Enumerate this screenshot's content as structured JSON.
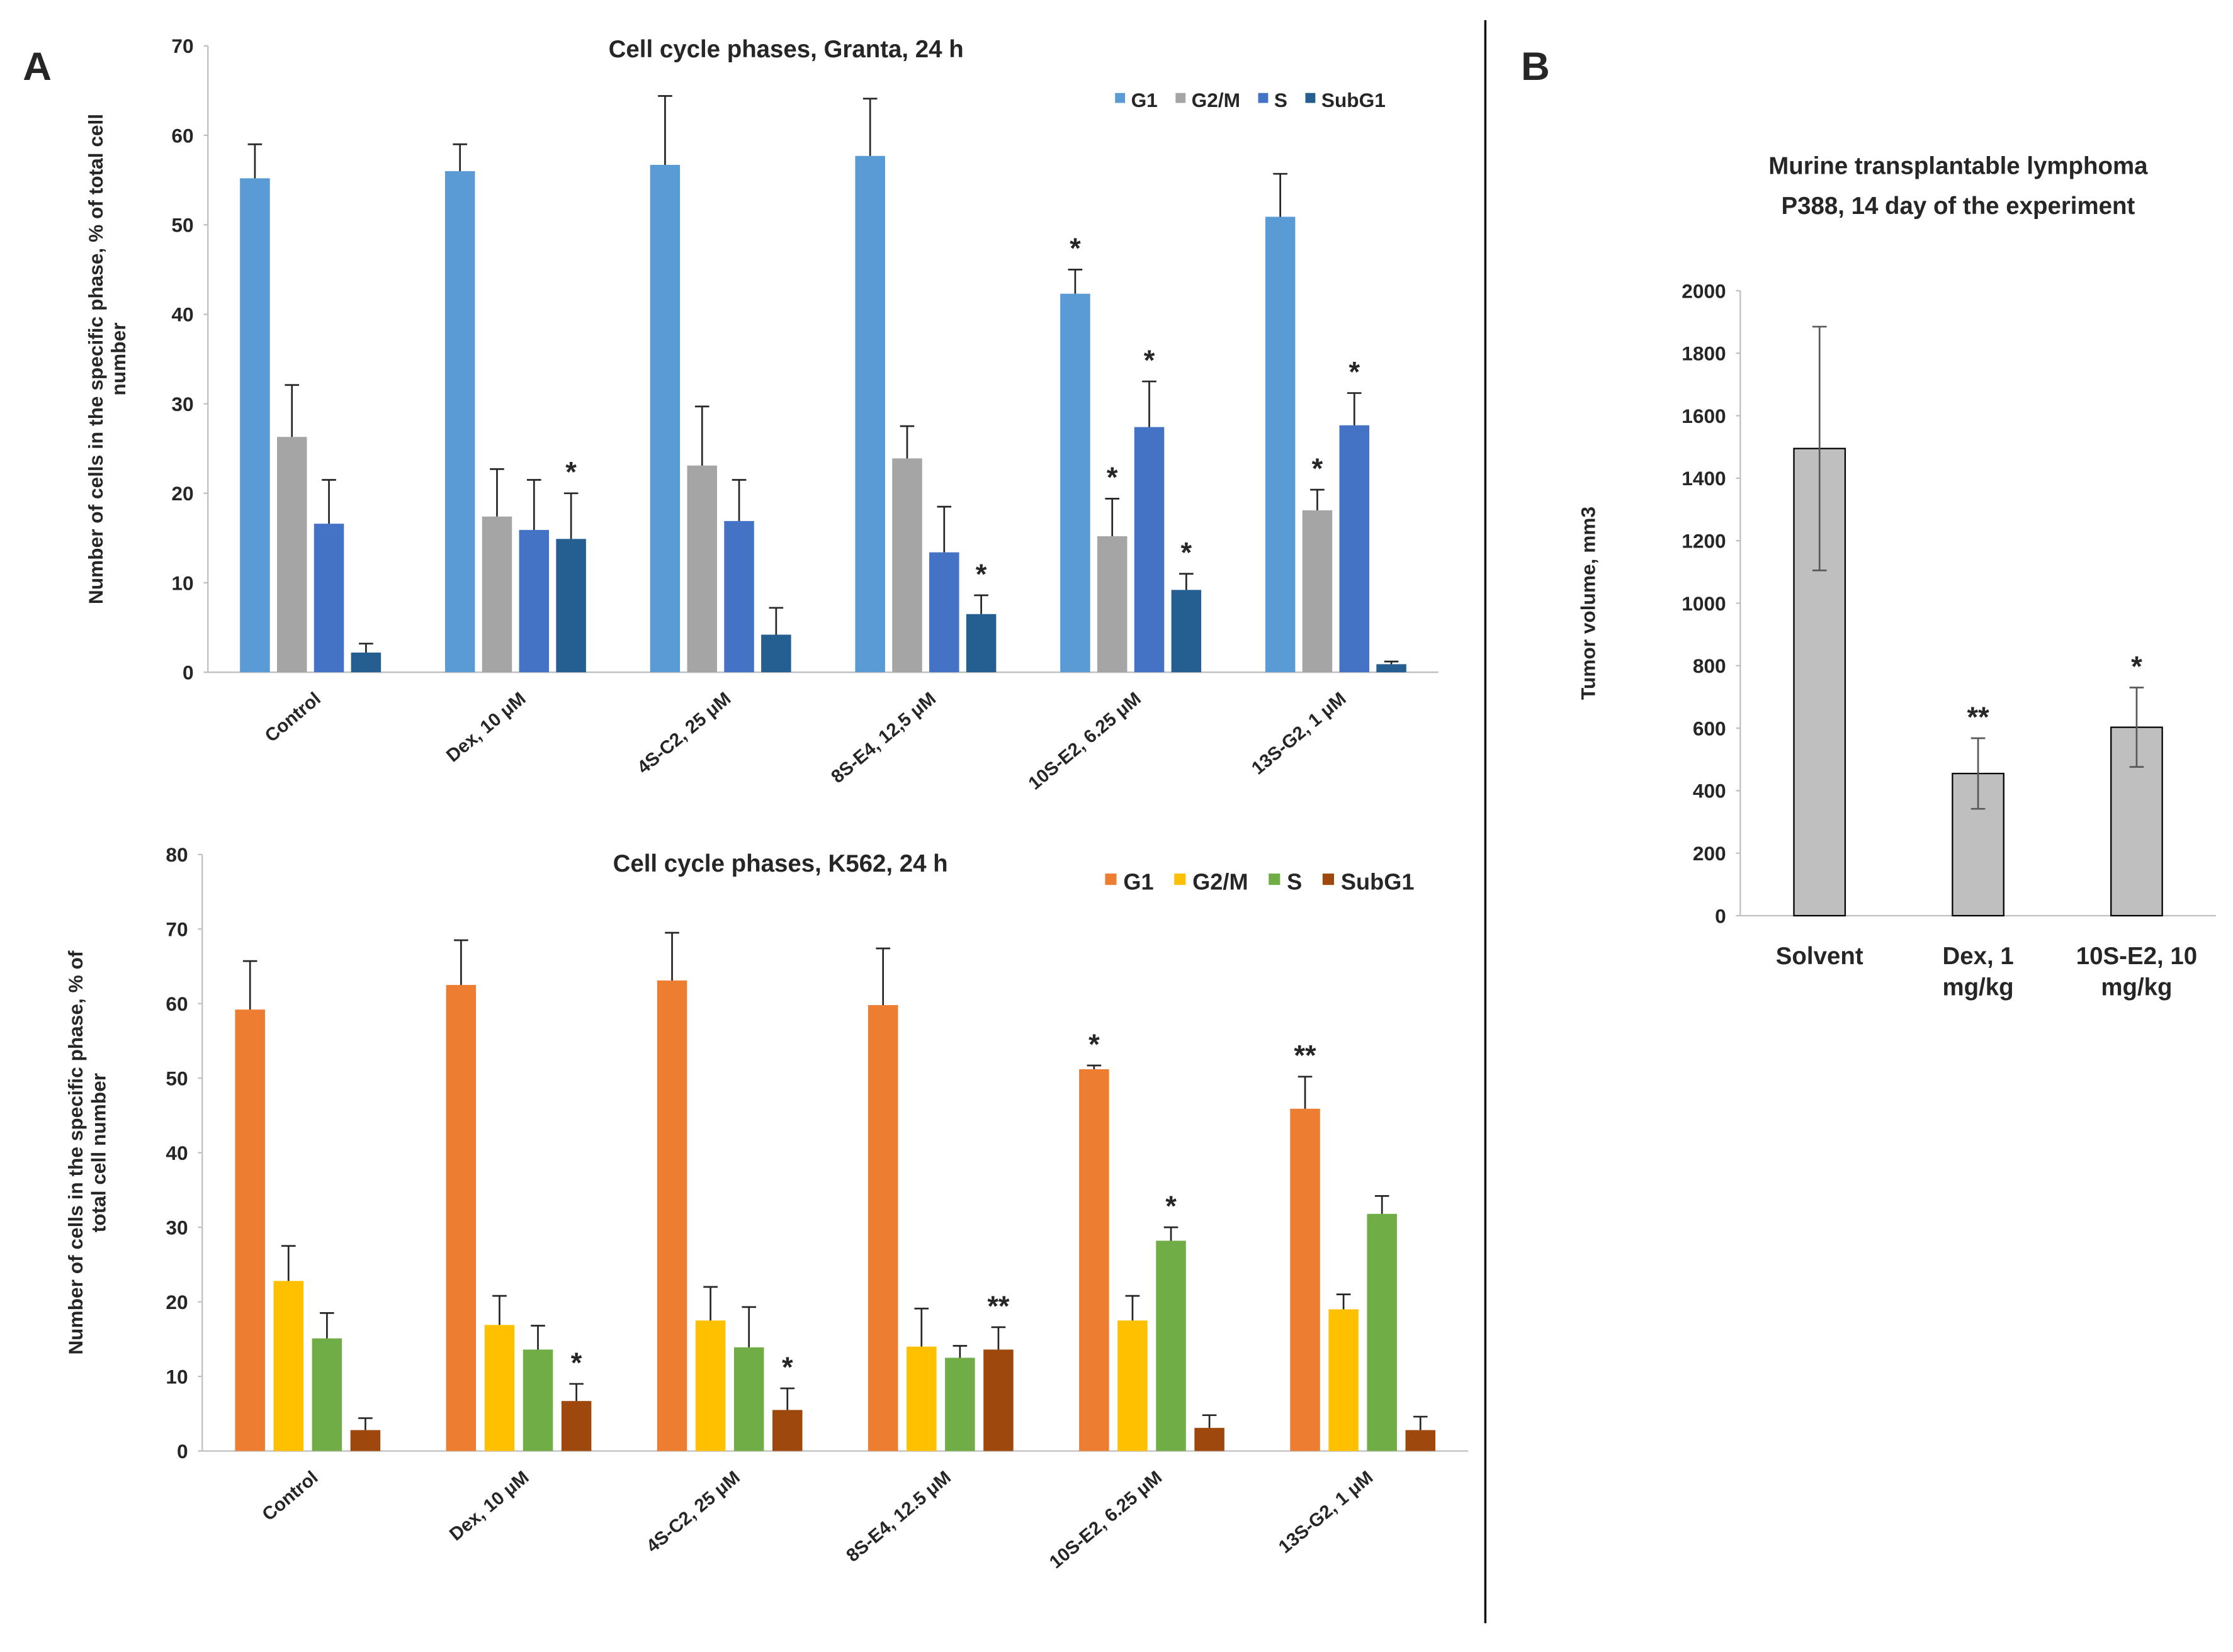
{
  "chart_data": [
    {
      "type": "bar",
      "panel_label": "A",
      "title": "Cell cycle phases, Granta, 24 h",
      "y_label": "Number of cells in the specific phase, % of total cell number",
      "categories": [
        "Control",
        "Dex, 10 μM",
        "4S-C2, 25 μM",
        "8S-E4, 12,5 μM",
        "10S-E2, 6.25 μM",
        "13S-G2, 1 μM"
      ],
      "series": [
        {
          "name": "G1",
          "color": "#5b9bd5",
          "values": [
            55.2,
            56,
            56.7,
            57.7,
            42.3,
            50.9
          ],
          "errors": [
            3.8,
            3,
            7.7,
            6.4,
            2.7,
            4.8
          ],
          "significance": [
            null,
            null,
            null,
            null,
            "*",
            null
          ]
        },
        {
          "name": "G2/M",
          "color": "#a5a5a5",
          "values": [
            26.3,
            17.4,
            23.1,
            23.9,
            15.2,
            18.1
          ],
          "errors": [
            5.8,
            5.3,
            6.6,
            3.6,
            4.2,
            2.3
          ],
          "significance": [
            null,
            null,
            null,
            null,
            "*",
            "*"
          ]
        },
        {
          "name": "S",
          "color": "#4472c4",
          "values": [
            16.6,
            15.9,
            16.9,
            13.4,
            27.4,
            27.6
          ],
          "errors": [
            4.9,
            5.6,
            4.6,
            5.1,
            5.1,
            3.6
          ],
          "significance": [
            null,
            null,
            null,
            null,
            "*",
            "*"
          ]
        },
        {
          "name": "SubG1",
          "color": "#255e91",
          "values": [
            2.2,
            14.9,
            4.2,
            6.5,
            9.2,
            0.9
          ],
          "errors": [
            1,
            5.1,
            3,
            2.1,
            1.8,
            0.3
          ],
          "significance": [
            null,
            "*",
            null,
            "*",
            "*",
            null
          ]
        }
      ],
      "error_bars": "up",
      "ylim": [
        0,
        70
      ],
      "yticks": [
        0,
        10,
        20,
        30,
        40,
        50,
        60,
        70
      ],
      "grid": false,
      "legend": "upper right"
    },
    {
      "type": "bar",
      "title": "Cell cycle phases, K562, 24 h",
      "y_label": "Number of cells in the specific phase, % of total cell number",
      "categories": [
        "Control",
        "Dex, 10 μM",
        "4S-C2, 25 μM",
        "8S-E4, 12.5 μM",
        "10S-E2, 6.25 μM",
        "13S-G2, 1 μM"
      ],
      "series": [
        {
          "name": "G1",
          "color": "#ed7d31",
          "values": [
            59.2,
            62.5,
            63.1,
            59.8,
            51.2,
            45.9
          ],
          "errors": [
            6.5,
            6,
            6.4,
            7.6,
            0.5,
            4.3
          ],
          "significance": [
            null,
            null,
            null,
            null,
            "*",
            "**"
          ]
        },
        {
          "name": "G2/M",
          "color": "#ffc000",
          "values": [
            22.8,
            16.9,
            17.5,
            14,
            17.5,
            19
          ],
          "errors": [
            4.7,
            3.9,
            4.5,
            5.1,
            3.3,
            2
          ],
          "significance": [
            null,
            null,
            null,
            null,
            null,
            null
          ]
        },
        {
          "name": "S",
          "color": "#70ad47",
          "values": [
            15.1,
            13.6,
            13.9,
            12.5,
            28.2,
            31.8
          ],
          "errors": [
            3.4,
            3.2,
            5.4,
            1.6,
            1.8,
            2.4
          ],
          "significance": [
            null,
            null,
            null,
            null,
            "*",
            null
          ]
        },
        {
          "name": "SubG1",
          "color": "#9e480e",
          "values": [
            2.8,
            6.7,
            5.5,
            13.6,
            3.1,
            2.8
          ],
          "errors": [
            1.6,
            2.3,
            2.9,
            3,
            1.7,
            1.8
          ],
          "significance": [
            null,
            "*",
            "*",
            "**",
            null,
            null
          ]
        }
      ],
      "error_bars": "up",
      "ylim": [
        0,
        80
      ],
      "yticks": [
        0,
        10,
        20,
        30,
        40,
        50,
        60,
        70,
        80
      ],
      "grid": false,
      "legend": "upper right"
    },
    {
      "type": "bar",
      "panel_label": "B",
      "title": "Murine transplantable lymphoma P388, 14 day of the experiment",
      "y_label": "Tumor volume, mm3",
      "categories": [
        "Solvent",
        "Dex, 1 mg/kg",
        "10S-E2, 10 mg/kg"
      ],
      "series": [
        {
          "color": "#bfbfbf",
          "values": [
            1495,
            455,
            603
          ],
          "errors": [
            390,
            113,
            127
          ],
          "significance": [
            null,
            "**",
            "*"
          ]
        }
      ],
      "error_bars": "both",
      "ylim": [
        0,
        2000
      ],
      "yticks": [
        0,
        200,
        400,
        600,
        800,
        1000,
        1200,
        1400,
        1600,
        1800,
        2000
      ],
      "grid": false
    }
  ]
}
